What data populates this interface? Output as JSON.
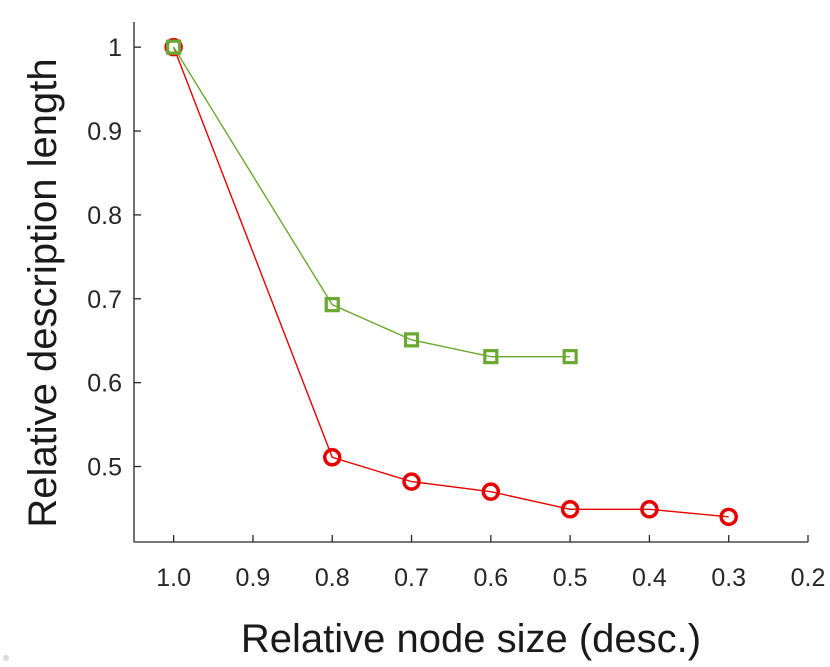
{
  "chart_data": {
    "type": "line",
    "title": "",
    "xlabel": "Relative node size (desc.)",
    "ylabel": "Relative description length",
    "xlim": [
      1.05,
      0.2
    ],
    "ylim": [
      0.41,
      1.03
    ],
    "x_reversed": true,
    "x_ticks": [
      1.0,
      0.9,
      0.8,
      0.7,
      0.6,
      0.5,
      0.4,
      0.3,
      0.2
    ],
    "x_tick_labels": [
      "1.0",
      "0.9",
      "0.8",
      "0.7",
      "0.6",
      "0.5",
      "0.4",
      "0.3",
      "0.2"
    ],
    "y_ticks": [
      0.5,
      0.6,
      0.7,
      0.8,
      0.9,
      1.0
    ],
    "y_tick_labels": [
      "0.5",
      "0.6",
      "0.7",
      "0.8",
      "0.9",
      "1"
    ],
    "grid": false,
    "series": [
      {
        "marker": "circle",
        "color": "#e60000",
        "x": [
          1.0,
          0.8,
          0.7,
          0.6,
          0.5,
          0.4,
          0.3
        ],
        "y": [
          1.0,
          0.511,
          0.482,
          0.47,
          0.449,
          0.449,
          0.44
        ]
      },
      {
        "marker": "square",
        "color": "#6aa832",
        "x": [
          1.0,
          0.8,
          0.7,
          0.6,
          0.5
        ],
        "y": [
          1.0,
          0.693,
          0.651,
          0.631,
          0.631
        ]
      }
    ]
  }
}
